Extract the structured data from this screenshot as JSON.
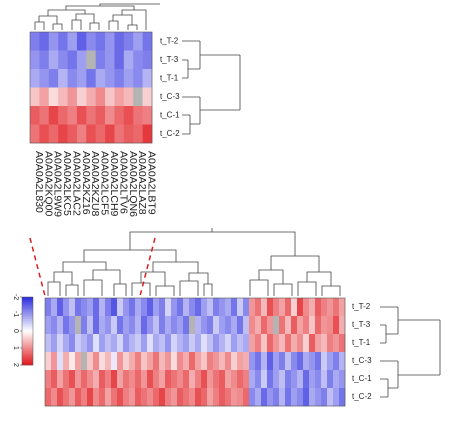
{
  "chart_data": [
    {
      "type": "heatmap",
      "categories": [
        "A0A0A2L830",
        "A0A0A2KQ00",
        "A0A0A2L9W9",
        "A0A0A2LKC5",
        "A0A0A2LAC2",
        "A0A0A2KZ16",
        "A0A0A2KZU8",
        "A0A0A2LCF5",
        "A0A0A2LCH9",
        "A0A0A2LTV6",
        "A0A0A2LQN6",
        "A0A0A2LAZ8",
        "A0A0A2LBT9"
      ],
      "rows": [
        "t_T-2",
        "t_T-3",
        "t_T-1",
        "t_C-3",
        "t_C-1",
        "t_C-2"
      ],
      "values": [
        [
          -1.2,
          -1.4,
          -1.0,
          -1.3,
          -0.9,
          -1.5,
          -1.1,
          -1.3,
          -1.0,
          -1.4,
          -1.2,
          -0.9,
          -1.3
        ],
        [
          -1.0,
          -1.2,
          -0.8,
          -1.1,
          -1.3,
          -0.9,
          null,
          -1.2,
          -1.0,
          -1.4,
          -0.8,
          -1.1,
          -1.2
        ],
        [
          -0.8,
          -1.0,
          -1.2,
          -0.7,
          -1.1,
          -0.9,
          -1.3,
          -0.8,
          -1.0,
          -1.2,
          -0.9,
          -1.1,
          -0.7
        ],
        [
          0.5,
          0.8,
          0.3,
          0.6,
          0.9,
          0.4,
          0.7,
          1.0,
          0.5,
          0.8,
          0.6,
          null,
          0.4
        ],
        [
          1.4,
          1.2,
          1.6,
          1.3,
          1.1,
          1.5,
          1.2,
          1.4,
          1.0,
          1.3,
          1.5,
          1.2,
          1.1
        ],
        [
          1.2,
          1.5,
          1.3,
          1.6,
          1.4,
          1.1,
          1.5,
          1.3,
          1.6,
          1.2,
          1.4,
          1.3,
          1.7
        ]
      ],
      "zlim": [
        -2,
        2
      ],
      "colors": [
        "#2a2ae0",
        "#ffffff",
        "#e0161b"
      ],
      "na_color": "#b4b4b4"
    },
    {
      "type": "heatmap",
      "rows": [
        "t_T-2",
        "t_T-3",
        "t_T-1",
        "t_C-3",
        "t_C-1",
        "t_C-2"
      ],
      "values": [
        [
          -1.2,
          -0.8,
          -1.5,
          -1.0,
          -0.6,
          -1.3,
          -1.1,
          -0.9,
          -1.4,
          -0.7,
          -1.2,
          -1.6,
          -0.5,
          -1.0,
          -1.3,
          -0.8,
          -1.1,
          -1.5,
          -0.9,
          -1.2,
          -0.4,
          -1.0,
          -1.3,
          -0.7,
          -1.1,
          -1.4,
          -0.9,
          -0.6,
          -1.2,
          -1.0,
          -0.8,
          -1.3,
          -0.5,
          -1.1,
          0.9,
          1.2,
          0.6,
          1.5,
          1.1,
          0.8,
          1.3,
          0.4,
          1.6,
          1.0,
          0.7,
          1.4,
          1.1,
          0.9,
          1.2,
          0.8
        ],
        [
          -0.9,
          -1.1,
          -0.7,
          -1.3,
          -1.0,
          null,
          -1.2,
          -0.6,
          -1.4,
          -0.8,
          -1.0,
          -0.5,
          -1.3,
          -0.9,
          -1.1,
          -0.7,
          -1.4,
          -1.0,
          -0.6,
          -1.2,
          -0.8,
          -1.1,
          -0.9,
          -1.3,
          null,
          -0.7,
          -1.0,
          -1.2,
          -0.5,
          -0.9,
          -1.1,
          -0.8,
          -1.3,
          -0.6,
          1.0,
          0.7,
          1.3,
          0.9,
          null,
          1.2,
          0.6,
          1.4,
          0.8,
          1.1,
          0.5,
          1.3,
          0.9,
          1.0,
          1.5,
          0.7
        ],
        [
          -0.6,
          -0.9,
          -0.4,
          -0.8,
          -1.1,
          -0.5,
          -0.7,
          -1.0,
          -0.3,
          -0.9,
          -0.6,
          -0.8,
          -0.4,
          -1.0,
          -0.7,
          -0.5,
          -0.9,
          -0.3,
          -0.8,
          -0.6,
          -1.0,
          -0.4,
          -0.7,
          -0.9,
          -0.5,
          -0.8,
          -0.3,
          -0.6,
          -1.0,
          -0.7,
          -0.4,
          -0.9,
          -0.6,
          -0.8,
          0.8,
          1.1,
          0.5,
          1.3,
          0.9,
          0.6,
          1.2,
          0.7,
          1.0,
          0.4,
          1.4,
          0.8,
          0.6,
          1.1,
          0.9,
          1.2
        ],
        [
          0.4,
          0.9,
          -0.3,
          0.7,
          0.2,
          0.8,
          null,
          0.5,
          1.0,
          0.3,
          0.6,
          -0.2,
          0.9,
          0.4,
          0.7,
          1.1,
          0.5,
          0.8,
          1.2,
          0.6,
          0.9,
          0.3,
          1.0,
          0.7,
          1.3,
          0.8,
          0.5,
          1.1,
          0.9,
          0.6,
          1.0,
          0.4,
          0.8,
          0.7,
          -1.0,
          -1.3,
          -0.7,
          -1.5,
          -0.9,
          -1.2,
          -0.6,
          -1.1,
          -1.4,
          -0.8,
          -1.0,
          -1.3,
          -0.5,
          -0.9,
          -1.2,
          -0.7
        ],
        [
          1.1,
          1.4,
          0.8,
          1.2,
          1.5,
          0.9,
          1.3,
          1.0,
          0.7,
          1.4,
          1.1,
          1.6,
          0.8,
          1.2,
          1.0,
          1.3,
          0.9,
          1.5,
          1.1,
          0.8,
          1.4,
          1.2,
          1.0,
          1.3,
          0.7,
          1.1,
          1.5,
          0.9,
          1.2,
          1.4,
          0.8,
          1.0,
          1.3,
          1.1,
          -0.8,
          -1.1,
          -0.5,
          -1.3,
          -0.9,
          -0.6,
          -1.2,
          -1.0,
          -0.7,
          -1.4,
          -0.9,
          -1.1,
          -0.6,
          -1.2,
          -0.8,
          -1.0
        ],
        [
          1.3,
          1.0,
          1.5,
          1.2,
          0.9,
          1.4,
          1.1,
          1.6,
          1.0,
          1.3,
          0.8,
          1.2,
          1.5,
          1.1,
          0.9,
          1.4,
          1.2,
          1.0,
          1.3,
          1.6,
          1.1,
          0.9,
          1.4,
          1.2,
          1.0,
          1.5,
          1.3,
          0.8,
          1.1,
          1.4,
          1.2,
          0.9,
          1.0,
          1.3,
          -1.1,
          -0.8,
          -1.4,
          -1.0,
          -1.2,
          -0.7,
          -1.3,
          -0.9,
          -1.1,
          -1.5,
          -0.8,
          -1.0,
          -1.2,
          -0.6,
          -0.9,
          -1.3
        ]
      ],
      "zlim": [
        -2,
        2
      ],
      "zticks": [
        -2,
        -1,
        0,
        1,
        2
      ],
      "colors": [
        "#2a2ae0",
        "#ffffff",
        "#e0161b"
      ],
      "na_color": "#b4b4b4"
    }
  ]
}
